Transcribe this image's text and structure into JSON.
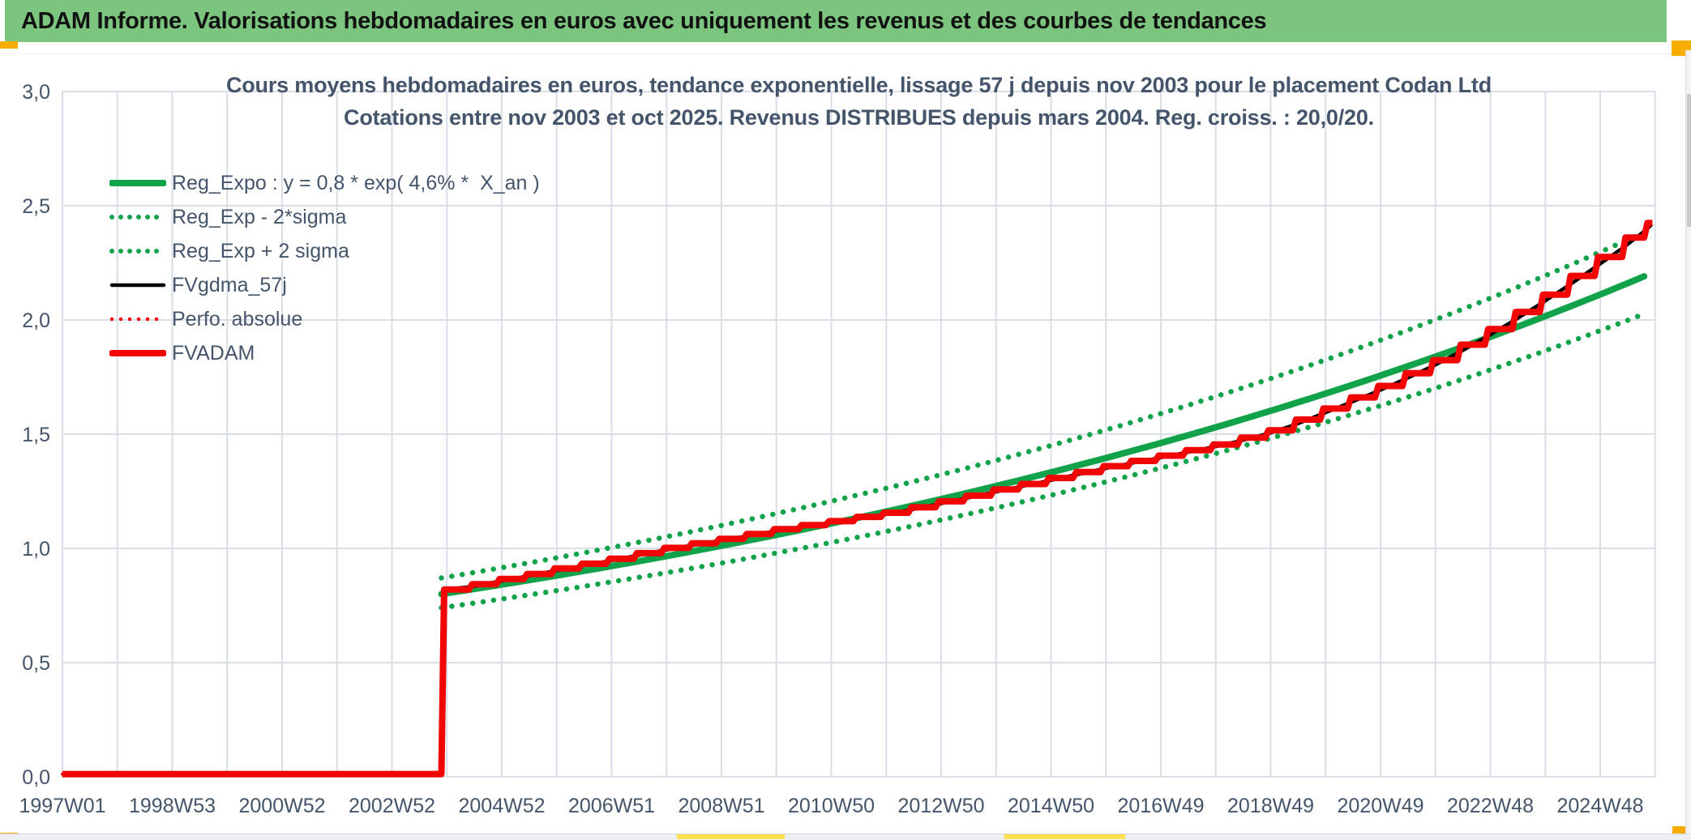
{
  "window_title": "ADAM Informe. Valorisations hebdomadaires en euros avec uniquement les revenus et des courbes de tendances",
  "colors": {
    "header_bg": "#7CC57E",
    "header_text": "#121212",
    "title_text": "#44546A",
    "axis_text": "#44546A",
    "gridline": "#D9DEE7",
    "trend_green": "#12A34A",
    "series_red": "#F10505",
    "series_black": "#000000",
    "accent_gold": "#F7AC00",
    "accent_yellow": "#FFE24D"
  },
  "chart_data": {
    "type": "line",
    "title": "Cours moyens hebdomadaires en euros, tendance exponentielle, lissage 57 j depuis nov 2003 pour le placement Codan Ltd",
    "subtitle": "Cotations entre nov 2003 et oct 2025. Revenus DISTRIBUES depuis mars 2004. Reg. croiss. : 20,0/20.",
    "ylim": [
      0.0,
      3.0
    ],
    "grid": true,
    "legend_position": "upper-left-inside",
    "y_ticks": [
      {
        "v": 0.0,
        "label": "0,0"
      },
      {
        "v": 0.5,
        "label": "0,5"
      },
      {
        "v": 1.0,
        "label": "1,0"
      },
      {
        "v": 1.5,
        "label": "1,5"
      },
      {
        "v": 2.0,
        "label": "2,0"
      },
      {
        "v": 2.5,
        "label": "2,5"
      },
      {
        "v": 3.0,
        "label": "3,0"
      }
    ],
    "x_axis_unit": "years since 1997W01, one minor gridline per year, label every 2 years",
    "x_years_total": 29,
    "x_ticks": [
      {
        "year": 0,
        "label": "1997W01"
      },
      {
        "year": 2,
        "label": "1998W53"
      },
      {
        "year": 4,
        "label": "2000W52"
      },
      {
        "year": 6,
        "label": "2002W52"
      },
      {
        "year": 8,
        "label": "2004W52"
      },
      {
        "year": 10,
        "label": "2006W51"
      },
      {
        "year": 12,
        "label": "2008W51"
      },
      {
        "year": 14,
        "label": "2010W50"
      },
      {
        "year": 16,
        "label": "2012W50"
      },
      {
        "year": 18,
        "label": "2014W50"
      },
      {
        "year": 20,
        "label": "2016W49"
      },
      {
        "year": 22,
        "label": "2018W49"
      },
      {
        "year": 24,
        "label": "2020W49"
      },
      {
        "year": 26,
        "label": "2022W48"
      },
      {
        "year": 28,
        "label": "2024W48"
      }
    ],
    "legend": [
      {
        "label": "Reg_Expo : y = 0,8 * exp( 4,6% *  X_an )",
        "color": "#12A34A",
        "style": "solid",
        "weight": 8
      },
      {
        "label": "Reg_Exp - 2*sigma",
        "color": "#12A34A",
        "style": "dotted",
        "weight": 6
      },
      {
        "label": "Reg_Exp + 2 sigma",
        "color": "#12A34A",
        "style": "dotted",
        "weight": 6
      },
      {
        "label": "FVgdma_57j",
        "color": "#000000",
        "style": "solid",
        "weight": 4.5
      },
      {
        "label": "Perfo. absolue",
        "color": "#F10505",
        "style": "dotted",
        "weight": 4.5
      },
      {
        "label": "FVADAM",
        "color": "#F10505",
        "style": "solid",
        "weight": 8
      }
    ],
    "series": {
      "reg_expo": {
        "formula": "y = 0,8 * exp( 4,6% * X_an )",
        "a": 0.8,
        "rate": 0.046,
        "x_start": 6.9,
        "x_end": 28.8
      },
      "reg_exp_minus_2sigma": {
        "factor_of_reg": 0.925
      },
      "reg_exp_plus_2sigma": {
        "factor_of_reg": 1.088
      },
      "fvgdma_57j": {
        "description": "57-day smoothing of FVADAM staircase, from nov 2003"
      },
      "perfo_absolue": {
        "description": "identical staircase plotted dotted beneath FVADAM"
      },
      "fvadam": {
        "zero_value_from_year": 0,
        "jump_at_year": 6.9,
        "steps": [
          [
            6.9,
            0.82
          ],
          [
            7.4,
            0.843
          ],
          [
            7.9,
            0.866
          ],
          [
            8.4,
            0.888
          ],
          [
            8.9,
            0.912
          ],
          [
            9.4,
            0.933
          ],
          [
            9.9,
            0.955
          ],
          [
            10.4,
            0.979
          ],
          [
            10.9,
            1.002
          ],
          [
            11.4,
            1.022
          ],
          [
            11.9,
            1.042
          ],
          [
            12.4,
            1.063
          ],
          [
            12.9,
            1.084
          ],
          [
            13.4,
            1.102
          ],
          [
            13.9,
            1.119
          ],
          [
            14.4,
            1.138
          ],
          [
            14.9,
            1.156
          ],
          [
            15.4,
            1.18
          ],
          [
            15.9,
            1.206
          ],
          [
            16.4,
            1.231
          ],
          [
            16.9,
            1.258
          ],
          [
            17.4,
            1.282
          ],
          [
            17.9,
            1.308
          ],
          [
            18.4,
            1.334
          ],
          [
            18.9,
            1.36
          ],
          [
            19.4,
            1.383
          ],
          [
            19.9,
            1.406
          ],
          [
            20.4,
            1.43
          ],
          [
            20.9,
            1.455
          ],
          [
            21.4,
            1.485
          ],
          [
            21.9,
            1.517
          ],
          [
            22.4,
            1.564
          ],
          [
            22.9,
            1.612
          ],
          [
            23.4,
            1.661
          ],
          [
            23.9,
            1.711
          ],
          [
            24.4,
            1.767
          ],
          [
            24.9,
            1.824
          ],
          [
            25.4,
            1.892
          ],
          [
            25.9,
            1.96
          ],
          [
            26.4,
            2.035
          ],
          [
            26.9,
            2.111
          ],
          [
            27.4,
            2.193
          ],
          [
            27.9,
            2.276
          ],
          [
            28.4,
            2.361
          ],
          [
            28.8,
            2.425
          ]
        ]
      }
    }
  }
}
